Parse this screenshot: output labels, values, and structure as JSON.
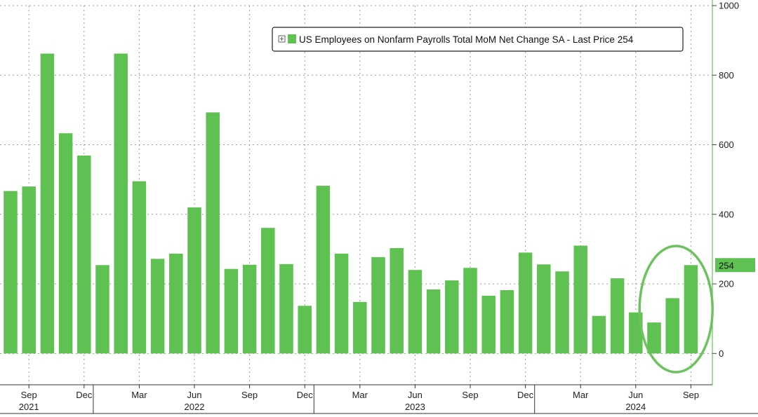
{
  "chart_data": {
    "type": "bar",
    "title": "",
    "xlabel": "",
    "ylabel": "",
    "legend": {
      "text": "US Employees on Nonfarm Payrolls Total MoM Net Change SA - Last Price 254",
      "placement": "top-right"
    },
    "last_value_label": "254",
    "ylim": [
      -90,
      1000
    ],
    "yticks": [
      0,
      200,
      400,
      600,
      800,
      1000
    ],
    "grid": true,
    "categories": [
      "2021-08",
      "2021-09",
      "2021-10",
      "2021-11",
      "2021-12",
      "2022-01",
      "2022-02",
      "2022-03",
      "2022-04",
      "2022-05",
      "2022-06",
      "2022-07",
      "2022-08",
      "2022-09",
      "2022-10",
      "2022-11",
      "2022-12",
      "2023-01",
      "2023-02",
      "2023-03",
      "2023-04",
      "2023-05",
      "2023-06",
      "2023-07",
      "2023-08",
      "2023-09",
      "2023-10",
      "2023-11",
      "2023-12",
      "2024-01",
      "2024-02",
      "2024-03",
      "2024-04",
      "2024-05",
      "2024-06",
      "2024-07",
      "2024-08",
      "2024-09"
    ],
    "series": [
      {
        "name": "US Employees on Nonfarm Payrolls Total MoM Net Change SA",
        "color": "#5fc152",
        "values": [
          467,
          480,
          862,
          633,
          569,
          254,
          862,
          495,
          272,
          287,
          420,
          693,
          243,
          255,
          361,
          257,
          137,
          482,
          287,
          148,
          277,
          303,
          240,
          184,
          210,
          246,
          166,
          182,
          290,
          256,
          236,
          310,
          108,
          216,
          118,
          89,
          159,
          254
        ]
      }
    ],
    "x_tick_labels": [
      {
        "label": "Sep",
        "index": 1
      },
      {
        "label": "Dec",
        "index": 4
      },
      {
        "label": "Mar",
        "index": 7
      },
      {
        "label": "Jun",
        "index": 10
      },
      {
        "label": "Sep",
        "index": 13
      },
      {
        "label": "Dec",
        "index": 16
      },
      {
        "label": "Mar",
        "index": 19
      },
      {
        "label": "Jun",
        "index": 22
      },
      {
        "label": "Sep",
        "index": 25
      },
      {
        "label": "Dec",
        "index": 28
      },
      {
        "label": "Mar",
        "index": 31
      },
      {
        "label": "Jun",
        "index": 34
      },
      {
        "label": "Sep",
        "index": 37
      }
    ],
    "year_labels": [
      {
        "label": "2021",
        "index": 1
      },
      {
        "label": "2022",
        "index": 10
      },
      {
        "label": "2023",
        "index": 22
      },
      {
        "label": "2024",
        "index": 34
      }
    ],
    "annotation": {
      "type": "ellipse-highlight",
      "color": "#6cc35e",
      "from_index": 35,
      "to_index": 37
    }
  }
}
